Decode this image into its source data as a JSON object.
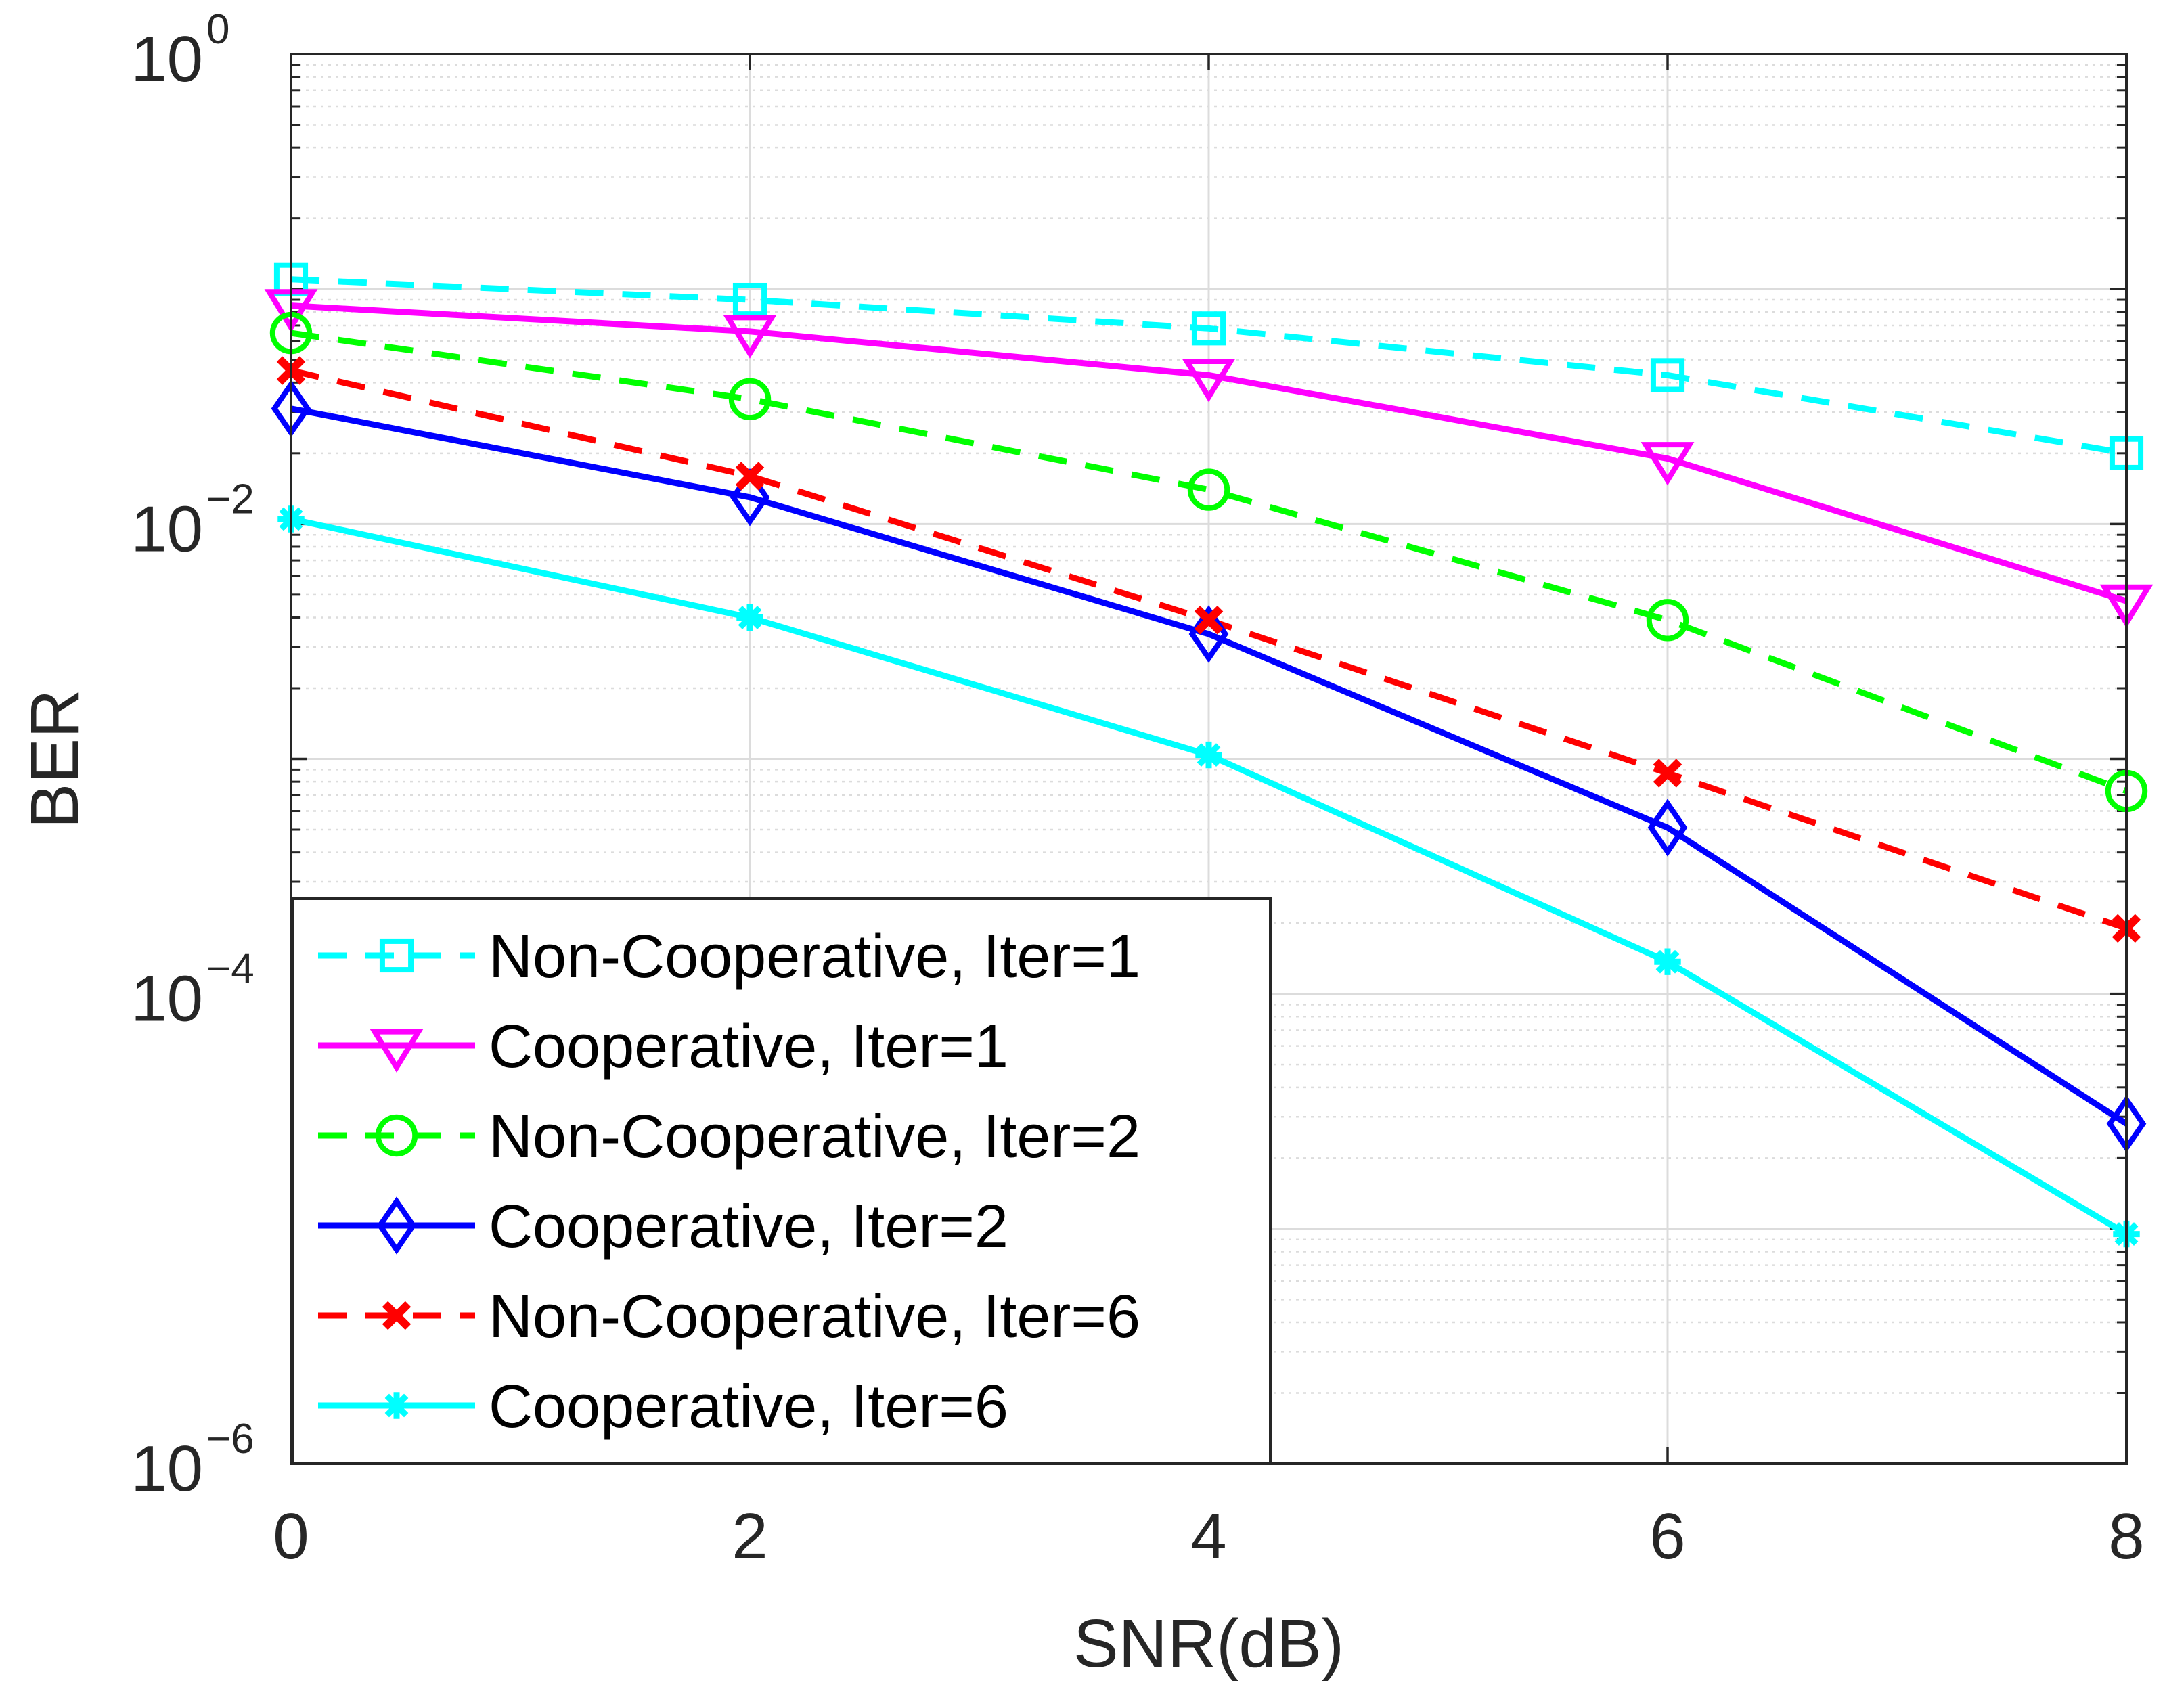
{
  "chart_data": {
    "type": "line",
    "title": "",
    "xlabel": "SNR(dB)",
    "ylabel": "BER",
    "xlim": [
      0,
      8
    ],
    "ylim": [
      1e-06,
      1
    ],
    "yscale": "log",
    "grid": true,
    "minor_grid": true,
    "legend_position": "bottom-left",
    "x": [
      0,
      2,
      4,
      6,
      8
    ],
    "x_ticks": [
      "0",
      "2",
      "4",
      "6",
      "8"
    ],
    "y_ticks": [
      {
        "base": "10",
        "exponent": "0",
        "value": 1
      },
      {
        "base": "10",
        "exponent": "−2",
        "value": 0.01
      },
      {
        "base": "10",
        "exponent": "−4",
        "value": 0.0001
      },
      {
        "base": "10",
        "exponent": "−6",
        "value": 1e-06
      }
    ],
    "series": [
      {
        "name": "Non-Cooperative, Iter=1",
        "color": "#00ffff",
        "line_style": "dashed",
        "marker": "square",
        "values": [
          0.11,
          0.09,
          0.068,
          0.043,
          0.02
        ]
      },
      {
        "name": "Cooperative, Iter=1",
        "color": "#ff00ff",
        "line_style": "solid",
        "marker": "triangle-down",
        "values": [
          0.085,
          0.066,
          0.043,
          0.019,
          0.0047
        ]
      },
      {
        "name": "Non-Cooperative, Iter=2",
        "color": "#00ff00",
        "line_style": "dashed",
        "marker": "circle",
        "values": [
          0.065,
          0.034,
          0.014,
          0.0039,
          0.00073
        ]
      },
      {
        "name": "Cooperative, Iter=2",
        "color": "#0000ff",
        "line_style": "solid",
        "marker": "diamond",
        "values": [
          0.031,
          0.013,
          0.0034,
          0.00051,
          2.8e-05
        ]
      },
      {
        "name": "Non-Cooperative, Iter=6",
        "color": "#ff0000",
        "line_style": "dashed",
        "marker": "x",
        "values": [
          0.045,
          0.016,
          0.0039,
          0.00087,
          0.00019
        ]
      },
      {
        "name": "Cooperative, Iter=6",
        "color": "#00ffff",
        "line_style": "solid",
        "marker": "asterisk",
        "values": [
          0.0105,
          0.004,
          0.00104,
          0.000137,
          9.5e-06
        ]
      }
    ]
  }
}
